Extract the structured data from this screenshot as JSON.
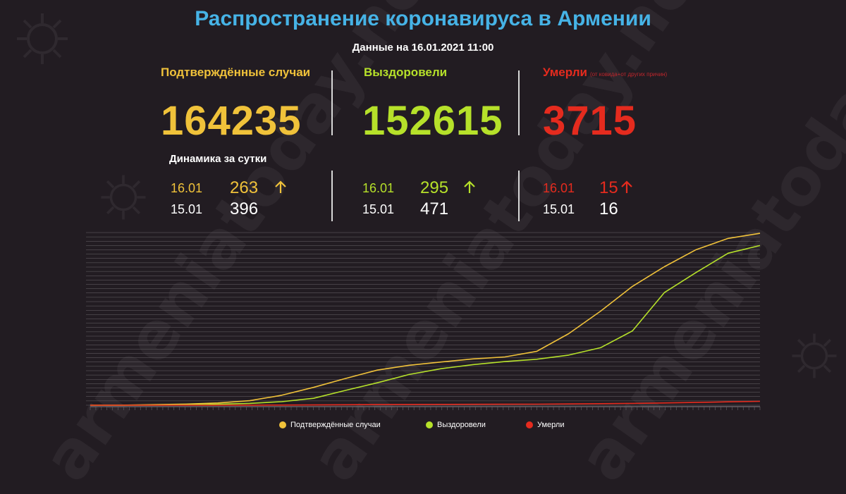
{
  "title": "Распространение коронавируса в Армении",
  "subtitle": "Данные на 16.01.2021 11:00",
  "watermark": "armeniatoday.news",
  "colors": {
    "background": "#221c22",
    "title": "#46b3e6",
    "confirmed": "#f0c23a",
    "recovered": "#b6e12a",
    "deaths": "#e52b1e",
    "gridline": "#6a646a"
  },
  "stats": {
    "confirmed": {
      "label": "Подтверждённые случаи",
      "value": "164235"
    },
    "recovered": {
      "label": "Выздоровели",
      "value": "152615"
    },
    "deaths": {
      "label": "Умерли",
      "note": "(от ковида+от других причин)",
      "value": "3715"
    }
  },
  "dynamics": {
    "title": "Динамика за сутки",
    "confirmed": {
      "today_date": "16.01",
      "today_value": "263",
      "yesterday_date": "15.01",
      "yesterday_value": "396",
      "trend_icon": "arrow-up-icon"
    },
    "recovered": {
      "today_date": "16.01",
      "today_value": "295",
      "yesterday_date": "15.01",
      "yesterday_value": "471",
      "trend_icon": "arrow-up-icon"
    },
    "deaths": {
      "today_date": "16.01",
      "today_value": "15",
      "yesterday_date": "15.01",
      "yesterday_value": "16",
      "trend_icon": "arrow-up-icon"
    }
  },
  "legend": [
    "Подтверждённые случаи",
    "Выздоровели",
    "Умерли"
  ],
  "chart_data": {
    "type": "line",
    "title": "",
    "xlabel": "",
    "ylabel": "",
    "ylim": [
      0,
      165000
    ],
    "grid": true,
    "legend_position": "bottom",
    "x": [
      "2020-03-01",
      "2020-03-15",
      "2020-04-01",
      "2020-04-15",
      "2020-05-01",
      "2020-05-15",
      "2020-06-01",
      "2020-06-15",
      "2020-07-01",
      "2020-07-15",
      "2020-08-01",
      "2020-08-15",
      "2020-09-01",
      "2020-09-15",
      "2020-10-01",
      "2020-10-15",
      "2020-11-01",
      "2020-11-15",
      "2020-12-01",
      "2020-12-15",
      "2021-01-01",
      "2021-01-16"
    ],
    "series": [
      {
        "name": "Подтверждённые случаи",
        "values": [
          1,
          52,
          532,
          1111,
          2148,
          4283,
          9492,
          17064,
          25542,
          33559,
          38196,
          41299,
          44271,
          46119,
          51424,
          68340,
          89813,
          113534,
          132346,
          148682,
          159409,
          164235
        ]
      },
      {
        "name": "Выздоровели",
        "values": [
          0,
          1,
          31,
          283,
          933,
          1758,
          3386,
          6571,
          14156,
          21429,
          29373,
          34877,
          38769,
          41704,
          43883,
          47868,
          54939,
          70986,
          107616,
          126883,
          145253,
          152615
        ]
      },
      {
        "name": "Умерли",
        "values": [
          0,
          0,
          3,
          18,
          33,
          60,
          145,
          293,
          443,
          622,
          735,
          821,
          886,
          940,
          1013,
          1205,
          1489,
          1746,
          2168,
          2615,
          3265,
          3715
        ]
      }
    ]
  }
}
